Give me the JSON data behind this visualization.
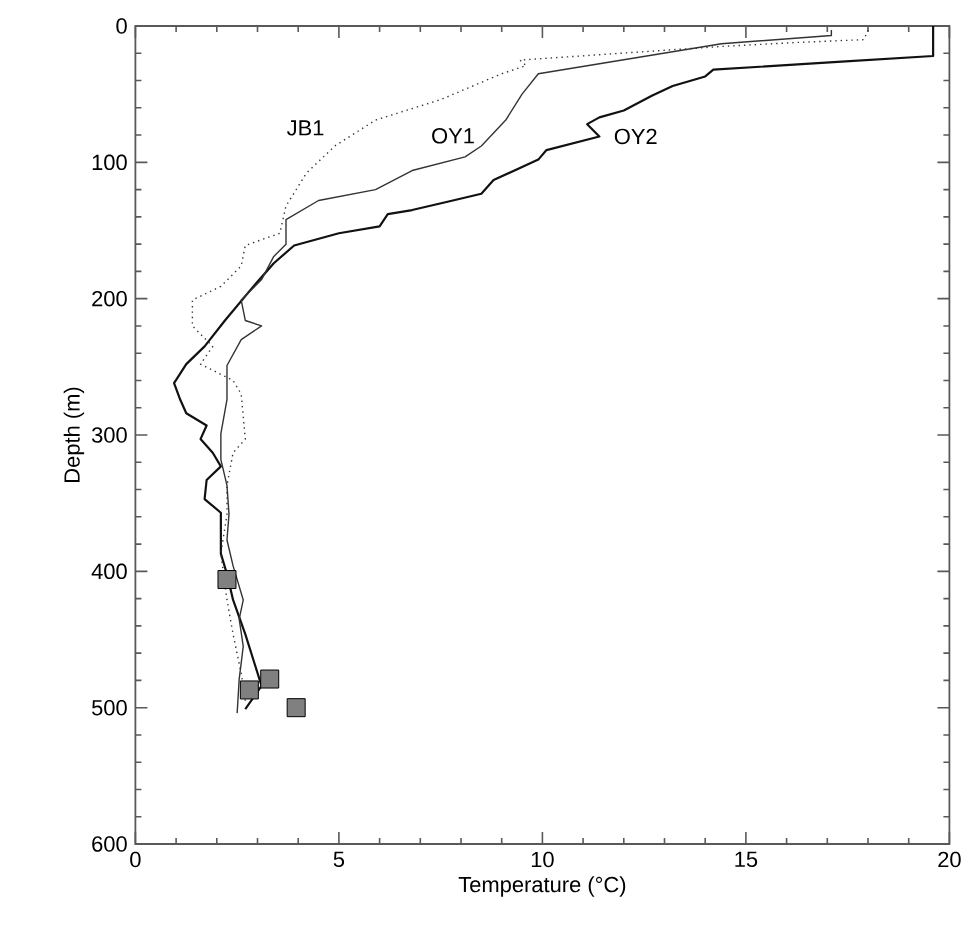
{
  "chart_data": {
    "type": "line",
    "xlabel": "Temperature (°C)",
    "ylabel": "Depth (m)",
    "xlim": [
      0,
      20
    ],
    "xticks": [
      0,
      5,
      10,
      15,
      20
    ],
    "ylim": [
      600,
      0
    ],
    "yticks": [
      0,
      100,
      200,
      300,
      400,
      500,
      600
    ],
    "series": [
      {
        "name": "OY2",
        "color": "#111111",
        "line_style": "solid",
        "x": [
          19.6,
          19.6,
          17.45,
          14.2,
          14.0,
          13.2,
          12.7,
          12.0,
          11.4,
          11.1,
          11.4,
          10.1,
          9.9,
          8.8,
          8.5,
          7.8,
          6.8,
          6.2,
          6.0,
          5.0,
          3.9,
          3.4,
          2.9,
          2.2,
          1.7,
          1.25,
          0.95,
          1.1,
          1.25,
          1.75,
          1.6,
          1.9,
          2.1,
          1.75,
          1.7,
          2.1,
          2.1,
          2.25,
          2.4,
          2.7,
          2.9,
          3.1,
          2.7
        ],
        "values": [
          0,
          22,
          26,
          32,
          37,
          44,
          51,
          62,
          67,
          72,
          81,
          91,
          98,
          113,
          123,
          128,
          135,
          138,
          147,
          152,
          161,
          174,
          191,
          216,
          235,
          248,
          262,
          274,
          284,
          293,
          303,
          313,
          323,
          333,
          347,
          357,
          387,
          402,
          421,
          446,
          465,
          484,
          501
        ]
      },
      {
        "name": "OY1",
        "color": "#333333",
        "line_style": "solid",
        "x": [
          17.1,
          17.1,
          14.4,
          9.9,
          9.5,
          9.1,
          8.5,
          8.1,
          6.8,
          5.9,
          4.5,
          3.7,
          3.7,
          3.4,
          3.1,
          2.6,
          2.7,
          3.1,
          2.6,
          2.25,
          2.25,
          2.1,
          2.1,
          2.25,
          2.3,
          2.25,
          2.4,
          2.65,
          2.55,
          2.65,
          2.55,
          2.5
        ],
        "values": [
          3,
          7,
          13,
          35,
          50,
          69,
          88,
          96,
          106,
          120,
          128,
          142,
          160,
          169,
          186,
          201,
          216,
          220,
          230,
          249,
          274,
          299,
          318,
          337,
          358,
          377,
          396,
          421,
          435,
          455,
          479,
          504
        ]
      },
      {
        "name": "JB1",
        "color": "#333333",
        "line_style": "dotted",
        "x": [
          18.0,
          17.9,
          16.3,
          14.4,
          9.45,
          9.6,
          9.0,
          7.5,
          5.9,
          4.9,
          4.2,
          3.7,
          3.55,
          2.7,
          2.6,
          2.1,
          1.4,
          1.4,
          1.9,
          1.6,
          2.4,
          2.6,
          2.7,
          2.4,
          2.25,
          2.25,
          2.1,
          2.25,
          2.4,
          2.6,
          2.7
        ],
        "values": [
          3,
          10,
          12,
          15,
          25,
          29,
          35,
          54,
          69,
          88,
          108,
          132,
          152,
          161,
          176,
          191,
          201,
          220,
          235,
          248,
          260,
          270,
          303,
          313,
          337,
          358,
          387,
          421,
          446,
          475,
          495
        ]
      },
      {
        "type": "scatter",
        "marker": "square",
        "color": "#808080",
        "x": [
          2.25,
          2.8,
          3.3,
          3.95
        ],
        "values": [
          406,
          487,
          479,
          500
        ]
      }
    ]
  }
}
